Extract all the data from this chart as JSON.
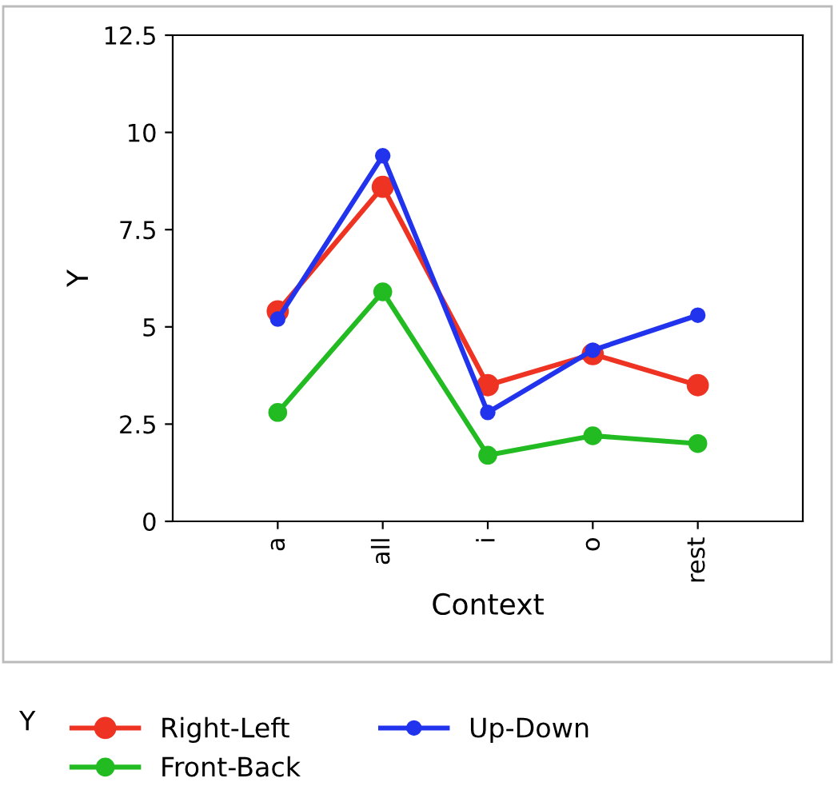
{
  "chart_data": {
    "type": "line",
    "xlabel": "Context",
    "ylabel": "Y",
    "legend_title": "Y",
    "categories": [
      "a",
      "all",
      "i",
      "o",
      "rest"
    ],
    "series": [
      {
        "name": "Right-Left",
        "color": "#ee3322",
        "values": [
          5.4,
          8.6,
          3.5,
          4.3,
          3.5
        ]
      },
      {
        "name": "Front-Back",
        "color": "#22bb22",
        "values": [
          2.8,
          5.9,
          1.7,
          2.2,
          2.0
        ]
      },
      {
        "name": "Up-Down",
        "color": "#2233ee",
        "values": [
          5.2,
          9.4,
          2.8,
          4.4,
          5.3
        ]
      }
    ],
    "ylim": [
      0,
      12.5
    ],
    "yticks": [
      0,
      2.5,
      5,
      7.5,
      10,
      12.5
    ],
    "marker": "circle",
    "line_style": "solid",
    "legend": "bottom",
    "grid": false
  }
}
